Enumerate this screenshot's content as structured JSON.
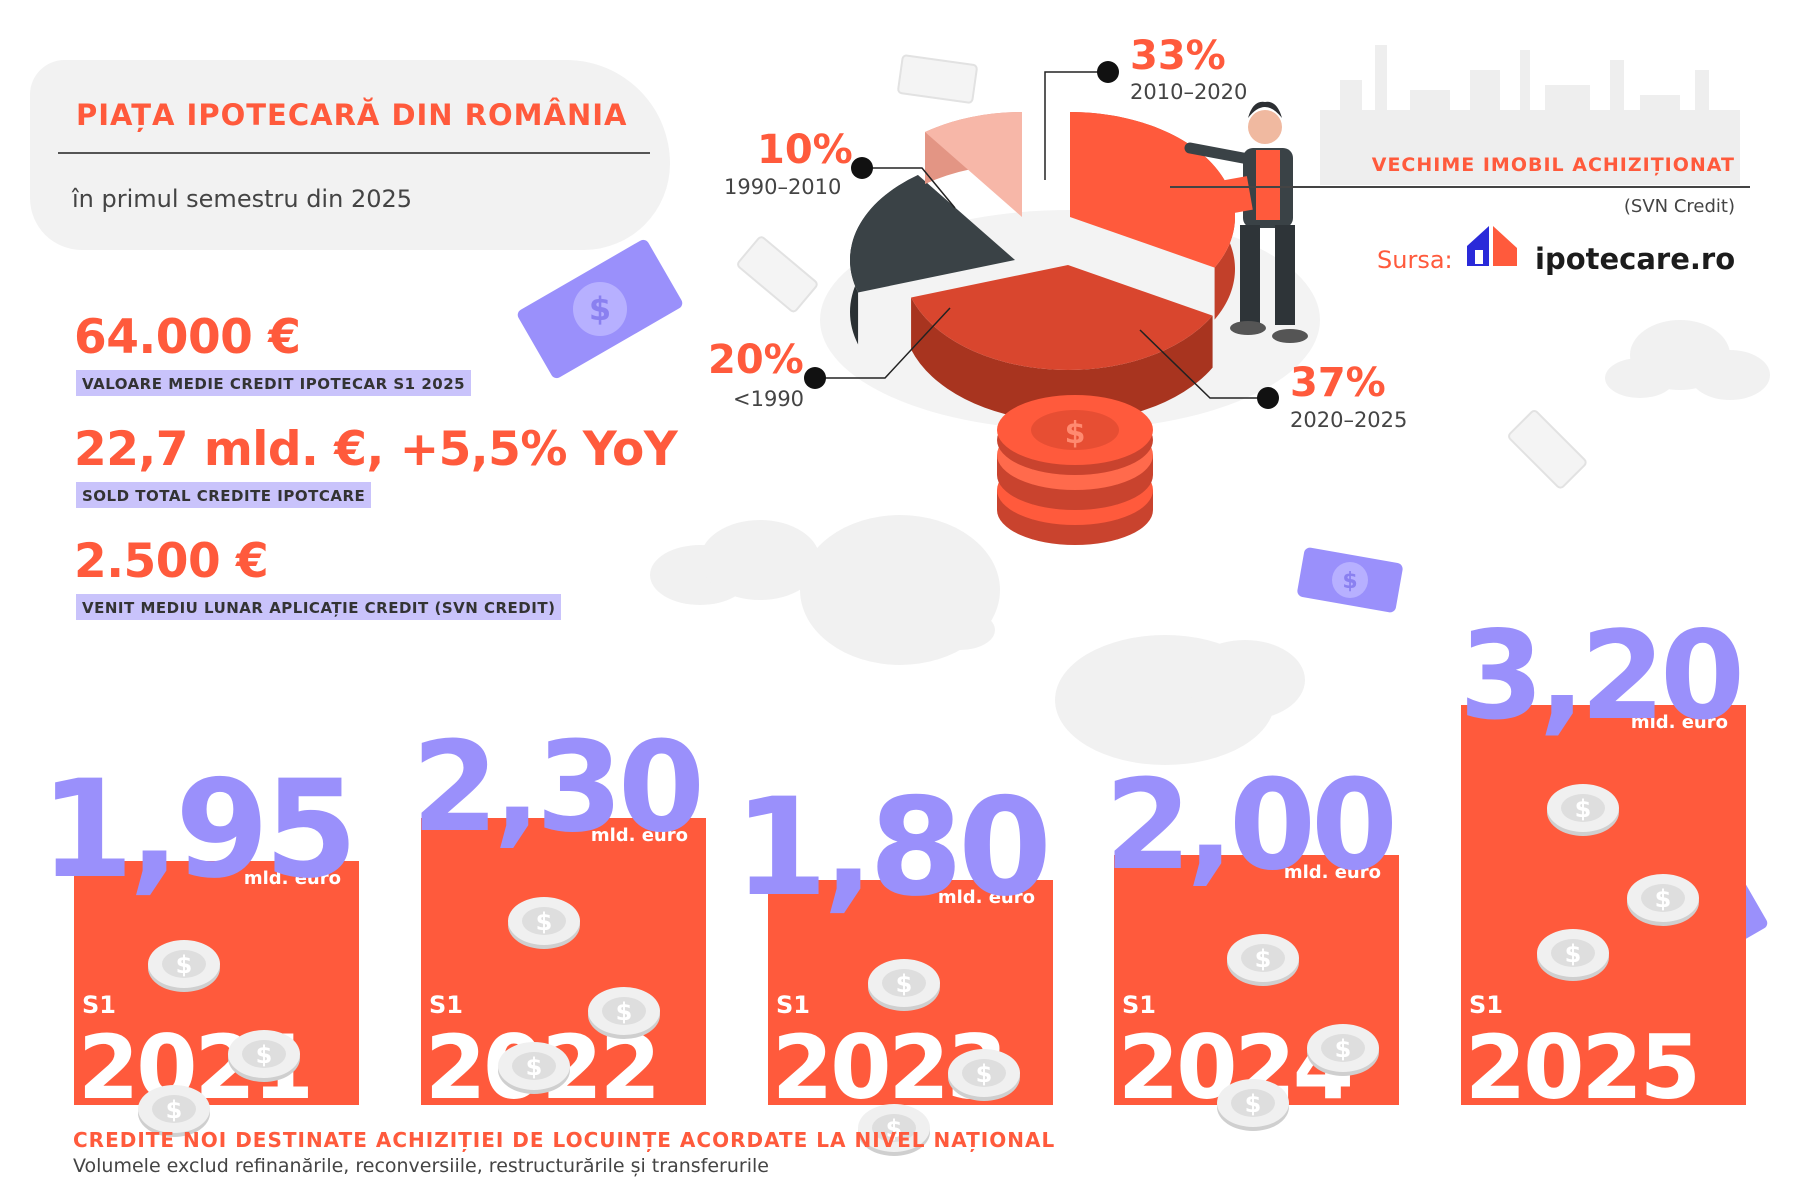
{
  "header": {
    "title": "PIAȚA IPOTECARĂ DIN ROMÂNIA",
    "subtitle": "în primul semestru din 2025"
  },
  "stats": [
    {
      "value": "64.000 €",
      "label": "VALOARE MEDIE CREDIT IPOTECAR S1 2025"
    },
    {
      "value": "22,7 mld. €, +5,5% YoY",
      "label": "SOLD TOTAL CREDITE IPOTCARE"
    },
    {
      "value": "2.500 €",
      "label": "VENIT MEDIU LUNAR APLICAȚIE CREDIT (SVN CREDIT)"
    }
  ],
  "pie_legend": {
    "title": "VECHIME IMOBIL ACHIZIȚIONAT",
    "subtitle": "(SVN Credit)"
  },
  "source": {
    "label": "Sursa:",
    "brand": "ipotecare.ro"
  },
  "footer": {
    "title": "CREDITE NOI DESTINATE ACHIZIȚIEI DE LOCUINȚE ACORDATE LA NIVEL NAȚIONAL",
    "note": "Volumele exclud refinanările, reconversiile, restructurările și transferurile"
  },
  "colors": {
    "accent": "#ff5a3c",
    "lavender": "#9a90fb",
    "dark": "#3a4246",
    "pink": "#f7b7a8",
    "red": "#c9432e"
  },
  "chart_data": [
    {
      "type": "pie",
      "slices": [
        {
          "label": "2010–2020",
          "value": 33,
          "display": "33%"
        },
        {
          "label": "2020–2025",
          "value": 37,
          "display": "37%"
        },
        {
          "label": "<1990",
          "value": 20,
          "display": "20%"
        },
        {
          "label": "1990–2010",
          "value": 10,
          "display": "10%"
        }
      ]
    },
    {
      "type": "bar",
      "categories": [
        "2021",
        "2022",
        "2023",
        "2024",
        "2025"
      ],
      "category_prefix": "S1",
      "values": [
        1.95,
        2.3,
        1.8,
        2.0,
        3.2
      ],
      "value_labels": [
        "1,95",
        "2,30",
        "1,80",
        "2,00",
        "3,20"
      ],
      "unit": "mld. euro"
    }
  ]
}
